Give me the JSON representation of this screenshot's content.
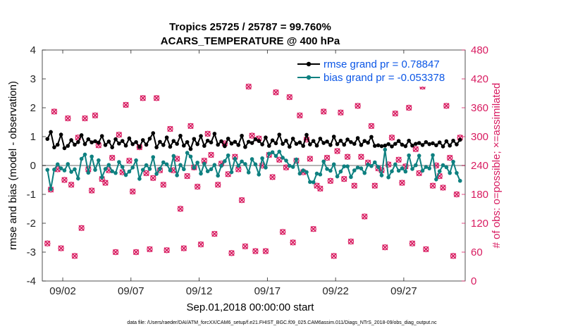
{
  "chart_data": {
    "type": "line",
    "title": "Tropics 25725 / 25787 = 99.760%",
    "subtitle": "ACARS_TEMPERATURE @ 400 hPa",
    "xlabel": "Sep.01,2018 00:00:00 start",
    "ylabel": "rmse and bias (model - observation)",
    "y2label": "# of obs: o=possible; ×=assimilated",
    "footnote": "data file: /Users/raeder/DAI/ATM_forcXX/CAM6_setup/f.e21.FHIST_BGC.f09_025.CAM6assim.011/Diags_NTrS_2018-09/obs_diag_output.nc",
    "xlim": [
      0.5,
      31.5
    ],
    "ylim": [
      -4,
      4
    ],
    "y2lim": [
      0,
      480
    ],
    "xticks": [
      2,
      7,
      12,
      17,
      22,
      27
    ],
    "xtick_labels": [
      "09/02",
      "09/07",
      "09/12",
      "09/17",
      "09/22",
      "09/27"
    ],
    "yticks": [
      -4,
      -3,
      -2,
      -1,
      0,
      1,
      2,
      3,
      4
    ],
    "ytick_labels": [
      "-4",
      "-3",
      "-2",
      "-1",
      "0",
      "1",
      "2",
      "3",
      "4"
    ],
    "y2ticks": [
      0,
      60,
      120,
      180,
      240,
      300,
      360,
      420,
      480
    ],
    "y2tick_labels": [
      "0",
      "60",
      "120",
      "180",
      "240",
      "300",
      "360",
      "420",
      "480"
    ],
    "legend_position": "top-right",
    "series": [
      {
        "name": "rmse grand pr = 0.78847",
        "axis": "left",
        "color": "#000000",
        "x": [
          0.875,
          1.125,
          1.375,
          1.625,
          1.875,
          2.125,
          2.375,
          2.625,
          2.875,
          3.125,
          3.375,
          3.625,
          3.875,
          4.125,
          4.375,
          4.625,
          4.875,
          5.125,
          5.375,
          5.625,
          5.875,
          6.125,
          6.375,
          6.625,
          6.875,
          7.125,
          7.375,
          7.625,
          7.875,
          8.125,
          8.375,
          8.625,
          8.875,
          9.125,
          9.375,
          9.625,
          9.875,
          10.125,
          10.375,
          10.625,
          10.875,
          11.125,
          11.375,
          11.625,
          11.875,
          12.125,
          12.375,
          12.625,
          12.875,
          13.125,
          13.375,
          13.625,
          13.875,
          14.125,
          14.375,
          14.625,
          14.875,
          15.125,
          15.375,
          15.625,
          15.875,
          16.125,
          16.375,
          16.625,
          16.875,
          17.125,
          17.375,
          17.625,
          17.875,
          18.125,
          18.375,
          18.625,
          18.875,
          19.125,
          19.375,
          19.625,
          19.875,
          20.125,
          20.375,
          20.625,
          20.875,
          21.125,
          21.375,
          21.625,
          21.875,
          22.125,
          22.375,
          22.625,
          22.875,
          23.125,
          23.375,
          23.625,
          23.875,
          24.125,
          24.375,
          24.625,
          24.875,
          25.125,
          25.375,
          25.625,
          25.875,
          26.125,
          26.375,
          26.625,
          26.875,
          27.125,
          27.375,
          27.625,
          27.875,
          28.125,
          28.375,
          28.625,
          28.875,
          29.125,
          29.375,
          29.625,
          29.875,
          30.125,
          30.375,
          30.625,
          30.875,
          31.125
        ],
        "values": [
          0.92,
          1.16,
          0.63,
          0.72,
          1.07,
          0.6,
          0.68,
          0.88,
          0.72,
          0.81,
          1.05,
          0.74,
          0.91,
          0.8,
          0.84,
          0.79,
          1.02,
          0.71,
          0.83,
          0.63,
          0.91,
          0.76,
          0.85,
          0.69,
          0.94,
          0.74,
          0.81,
          0.64,
          0.88,
          0.72,
          0.93,
          1.12,
          0.63,
          0.82,
          0.71,
          0.97,
          0.65,
          0.85,
          0.75,
          1.03,
          0.69,
          0.81,
          0.57,
          0.92,
          0.74,
          1.02,
          0.68,
          0.86,
          0.8,
          1.1,
          0.72,
          0.84,
          0.67,
          0.93,
          0.76,
          0.82,
          0.71,
          1.03,
          0.64,
          0.82,
          0.78,
          0.91,
          0.85,
          0.73,
          0.97,
          0.68,
          0.87,
          0.77,
          1.07,
          0.75,
          0.86,
          0.65,
          0.93,
          0.75,
          0.8,
          0.68,
          1.06,
          0.73,
          0.85,
          0.69,
          0.93,
          0.78,
          0.83,
          0.71,
          1.0,
          0.74,
          0.86,
          0.72,
          0.9,
          0.81,
          0.75,
          0.95,
          0.71,
          0.85,
          0.79,
          0.99,
          0.68,
          0.7,
          0.67,
          0.69,
          0.74,
          0.66,
          0.75,
          0.85,
          0.72,
          0.67,
          0.86,
          0.69,
          0.75,
          0.78,
          0.71,
          0.81,
          0.74,
          0.77,
          0.7,
          0.8,
          0.66,
          0.84,
          0.69,
          0.86,
          0.73,
          0.89
        ]
      },
      {
        "name": "bias grand pr = -0.053378",
        "axis": "left",
        "color": "#0e8080",
        "x": [
          0.875,
          1.125,
          1.375,
          1.625,
          1.875,
          2.125,
          2.375,
          2.625,
          2.875,
          3.125,
          3.375,
          3.625,
          3.875,
          4.125,
          4.375,
          4.625,
          4.875,
          5.125,
          5.375,
          5.625,
          5.875,
          6.125,
          6.375,
          6.625,
          6.875,
          7.125,
          7.375,
          7.625,
          7.875,
          8.125,
          8.375,
          8.625,
          8.875,
          9.125,
          9.375,
          9.625,
          9.875,
          10.125,
          10.375,
          10.625,
          10.875,
          11.125,
          11.375,
          11.625,
          11.875,
          12.125,
          12.375,
          12.625,
          12.875,
          13.125,
          13.375,
          13.625,
          13.875,
          14.125,
          14.375,
          14.625,
          14.875,
          15.125,
          15.375,
          15.625,
          15.875,
          16.125,
          16.375,
          16.625,
          16.875,
          17.125,
          17.375,
          17.625,
          17.875,
          18.125,
          18.375,
          18.625,
          18.875,
          19.125,
          19.375,
          19.625,
          19.875,
          20.125,
          20.375,
          20.625,
          20.875,
          21.125,
          21.375,
          21.625,
          21.875,
          22.125,
          22.375,
          22.625,
          22.875,
          23.125,
          23.375,
          23.625,
          23.875,
          24.125,
          24.375,
          24.625,
          24.875,
          25.125,
          25.375,
          25.625,
          25.875,
          26.125,
          26.375,
          26.625,
          26.875,
          27.125,
          27.375,
          27.625,
          27.875,
          28.125,
          28.375,
          28.625,
          28.875,
          29.125,
          29.375,
          29.625,
          29.875,
          30.125,
          30.375,
          30.625,
          30.875,
          31.125
        ],
        "values": [
          -0.15,
          -0.82,
          -0.14,
          0.04,
          -0.1,
          -0.17,
          0.05,
          -0.22,
          -0.13,
          -0.45,
          0.23,
          0.38,
          -0.25,
          0.31,
          -0.15,
          0.18,
          -0.41,
          -0.12,
          0.02,
          -0.2,
          -0.26,
          0.12,
          -0.05,
          -0.33,
          -0.21,
          -0.07,
          0.18,
          -0.46,
          -0.15,
          0.01,
          -0.12,
          0.29,
          -0.29,
          -0.11,
          0.11,
          0.04,
          -0.17,
          0.33,
          -0.34,
          0.02,
          -0.13,
          0.44,
          0.31,
          -0.08,
          0.1,
          -0.28,
          0.06,
          -0.2,
          -0.13,
          0.02,
          -0.35,
          -0.01,
          0.15,
          0.35,
          -0.23,
          0.23,
          -0.01,
          0.14,
          0.05,
          -0.24,
          0.22,
          0.04,
          -0.31,
          0.25,
          -0.07,
          0.41,
          0.46,
          0.33,
          0.48,
          0.27,
          0.17,
          -0.01,
          -0.05,
          0.21,
          -0.28,
          -0.17,
          -0.23,
          -0.57,
          -0.58,
          -0.28,
          -0.31,
          0.14,
          -0.12,
          -0.18,
          0.04,
          -0.38,
          -0.21,
          -0.03,
          -0.03,
          -0.4,
          -0.17,
          -0.07,
          -0.1,
          -0.26,
          0.03,
          -0.02,
          0.11,
          -0.05,
          -0.34,
          0.55,
          -0.41,
          -0.2,
          0.04,
          -0.18,
          -0.1,
          -0.21,
          0.35,
          -0.12,
          0.01,
          0.34,
          -0.18,
          -0.05,
          -0.1,
          0.36,
          -0.48,
          -0.2,
          0.01,
          -0.06,
          -0.26,
          0.13,
          -0.26,
          -0.53
        ]
      },
      {
        "name": "# of obs possible",
        "axis": "right",
        "color": "#d81b60",
        "x": [
          0.875,
          1.125,
          1.375,
          1.625,
          1.875,
          2.125,
          2.375,
          2.625,
          2.875,
          3.125,
          3.375,
          3.625,
          3.875,
          4.125,
          4.375,
          4.625,
          4.875,
          5.125,
          5.375,
          5.625,
          5.875,
          6.125,
          6.375,
          6.625,
          6.875,
          7.125,
          7.375,
          7.625,
          7.875,
          8.125,
          8.375,
          8.625,
          8.875,
          9.125,
          9.375,
          9.625,
          9.875,
          10.125,
          10.375,
          10.625,
          10.875,
          11.125,
          11.375,
          11.625,
          11.875,
          12.125,
          12.375,
          12.625,
          12.875,
          13.125,
          13.375,
          13.625,
          13.875,
          14.125,
          14.375,
          14.625,
          14.875,
          15.125,
          15.375,
          15.625,
          15.875,
          16.125,
          16.375,
          16.625,
          16.875,
          17.125,
          17.375,
          17.625,
          17.875,
          18.125,
          18.375,
          18.625,
          18.875,
          19.125,
          19.375,
          19.625,
          19.875,
          20.125,
          20.375,
          20.625,
          20.875,
          21.125,
          21.375,
          21.625,
          21.875,
          22.125,
          22.375,
          22.625,
          22.875,
          23.125,
          23.375,
          23.625,
          23.875,
          24.125,
          24.375,
          24.625,
          24.875,
          25.125,
          25.375,
          25.625,
          25.875,
          26.125,
          26.375,
          26.625,
          26.875,
          27.125,
          27.375,
          27.625,
          27.875,
          28.125,
          28.375,
          28.625,
          28.875,
          29.125,
          29.375,
          29.625,
          29.875,
          30.125,
          30.375,
          30.625,
          30.875,
          31.125
        ],
        "values": [
          78,
          190,
          352,
          232,
          68,
          210,
          338,
          200,
          52,
          298,
          110,
          338,
          232,
          188,
          344,
          282,
          212,
          204,
          230,
          256,
          60,
          304,
          226,
          366,
          250,
          186,
          60,
          278,
          380,
          224,
          66,
          214,
          380,
          230,
          200,
          64,
          316,
          230,
          254,
          150,
          68,
          218,
          322,
          236,
          196,
          76,
          250,
          306,
          262,
          98,
          200,
          244,
          286,
          222,
          58,
          258,
          232,
          168,
          72,
          404,
          302,
          62,
          296,
          240,
          62,
          262,
          216,
          392,
          252,
          102,
          236,
          382,
          80,
          250,
          344,
          226,
          294,
          254,
          108,
          198,
          192,
          352,
          256,
          208,
          52,
          270,
          350,
          212,
          258,
          82,
          198,
          364,
          258,
          134,
          246,
          322,
          198,
          234,
          230,
          70,
          242,
          298,
          348,
          252,
          204,
          238,
          360,
          78,
          274,
          224,
          404,
          66,
          416,
          198,
          240,
          218,
          194,
          364,
          256,
          52,
          180,
          298
        ]
      },
      {
        "name": "# of obs assimilated",
        "axis": "right",
        "color": "#d81b60",
        "x": [
          0.875,
          1.125,
          1.375,
          1.625,
          1.875,
          2.125,
          2.375,
          2.625,
          2.875,
          3.125,
          3.375,
          3.625,
          3.875,
          4.125,
          4.375,
          4.625,
          4.875,
          5.125,
          5.375,
          5.625,
          5.875,
          6.125,
          6.375,
          6.625,
          6.875,
          7.125,
          7.375,
          7.625,
          7.875,
          8.125,
          8.375,
          8.625,
          8.875,
          9.125,
          9.375,
          9.625,
          9.875,
          10.125,
          10.375,
          10.625,
          10.875,
          11.125,
          11.375,
          11.625,
          11.875,
          12.125,
          12.375,
          12.625,
          12.875,
          13.125,
          13.375,
          13.625,
          13.875,
          14.125,
          14.375,
          14.625,
          14.875,
          15.125,
          15.375,
          15.625,
          15.875,
          16.125,
          16.375,
          16.625,
          16.875,
          17.125,
          17.375,
          17.625,
          17.875,
          18.125,
          18.375,
          18.625,
          18.875,
          19.125,
          19.375,
          19.625,
          19.875,
          20.125,
          20.375,
          20.625,
          20.875,
          21.125,
          21.375,
          21.625,
          21.875,
          22.125,
          22.375,
          22.625,
          22.875,
          23.125,
          23.375,
          23.625,
          23.875,
          24.125,
          24.375,
          24.625,
          24.875,
          25.125,
          25.375,
          25.625,
          25.875,
          26.125,
          26.375,
          26.625,
          26.875,
          27.125,
          27.375,
          27.625,
          27.875,
          28.125,
          28.375,
          28.625,
          28.875,
          29.125,
          29.375,
          29.625,
          29.875,
          30.125,
          30.375,
          30.625,
          30.875,
          31.125
        ],
        "values": [
          78,
          190,
          352,
          232,
          68,
          210,
          338,
          200,
          52,
          298,
          110,
          338,
          232,
          188,
          344,
          282,
          212,
          204,
          230,
          256,
          60,
          304,
          226,
          366,
          250,
          186,
          60,
          278,
          380,
          224,
          66,
          214,
          380,
          230,
          200,
          64,
          316,
          230,
          254,
          150,
          68,
          218,
          322,
          236,
          196,
          76,
          250,
          306,
          262,
          98,
          200,
          244,
          286,
          222,
          58,
          258,
          232,
          168,
          72,
          404,
          302,
          62,
          296,
          240,
          62,
          262,
          216,
          392,
          252,
          102,
          236,
          382,
          80,
          250,
          344,
          226,
          294,
          254,
          108,
          198,
          192,
          352,
          256,
          208,
          52,
          270,
          350,
          212,
          258,
          82,
          198,
          364,
          258,
          134,
          246,
          322,
          198,
          234,
          230,
          70,
          242,
          298,
          348,
          252,
          204,
          238,
          360,
          78,
          274,
          224,
          404,
          66,
          416,
          198,
          240,
          218,
          194,
          364,
          256,
          52,
          180,
          298
        ]
      }
    ]
  }
}
